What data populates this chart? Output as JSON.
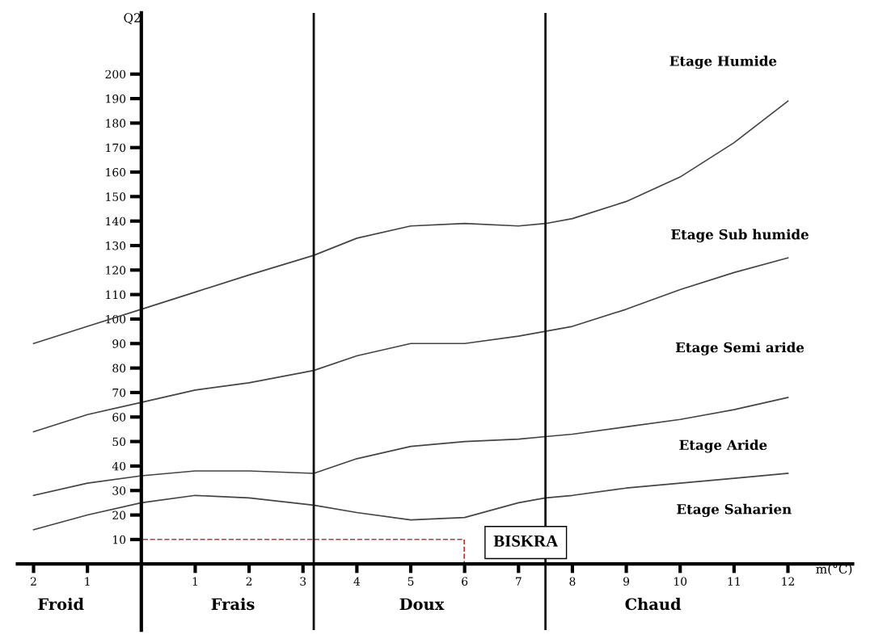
{
  "chart_data": {
    "type": "line",
    "xlabel": "m(°C)",
    "ylabel": "Q2",
    "xlim": [
      -2.3,
      13.2
    ],
    "ylim": [
      -27,
      225
    ],
    "xticks": [
      {
        "value": -2,
        "label": "2"
      },
      {
        "value": -1,
        "label": "1"
      },
      1,
      2,
      3,
      4,
      5,
      6,
      7,
      8,
      9,
      10,
      11,
      12
    ],
    "yticks": [
      10,
      20,
      30,
      40,
      50,
      60,
      70,
      80,
      90,
      100,
      110,
      120,
      130,
      140,
      150,
      160,
      170,
      180,
      190,
      200
    ],
    "grid": false,
    "legend": false,
    "marker": "none",
    "line_style": "solid",
    "series": [
      {
        "color": "#444444",
        "x": [
          -2,
          -1,
          0,
          1,
          2,
          3.2,
          4,
          5,
          6,
          7,
          7.5,
          8,
          9,
          10,
          11,
          12
        ],
        "values": [
          90,
          97,
          104,
          111,
          118,
          126,
          133,
          138,
          139,
          138,
          139,
          141,
          148,
          158,
          172,
          189
        ]
      },
      {
        "color": "#444444",
        "x": [
          -2,
          -1,
          0,
          1,
          2,
          3.2,
          4,
          5,
          6,
          7,
          7.5,
          8,
          9,
          10,
          11,
          12
        ],
        "values": [
          54,
          61,
          66,
          71,
          74,
          79,
          85,
          90,
          90,
          93,
          95,
          97,
          104,
          112,
          119,
          125
        ]
      },
      {
        "color": "#444444",
        "x": [
          -2,
          -1,
          0,
          1,
          2,
          3.2,
          4,
          5,
          6,
          7,
          7.5,
          8,
          9,
          10,
          11,
          12
        ],
        "values": [
          28,
          33,
          36,
          38,
          38,
          37,
          43,
          48,
          50,
          51,
          52,
          53,
          56,
          59,
          63,
          68
        ]
      },
      {
        "color": "#444444",
        "x": [
          -2,
          -1,
          0,
          1,
          2,
          3.2,
          4,
          5,
          6,
          7,
          7.5,
          8,
          9,
          10,
          11,
          12
        ],
        "values": [
          14,
          20,
          25,
          28,
          27,
          24,
          21,
          18,
          19,
          25,
          27,
          28,
          31,
          33,
          35,
          37
        ]
      }
    ],
    "ref_lines": [
      {
        "axis": "x",
        "value": 3.2,
        "color": "#111111"
      },
      {
        "axis": "x",
        "value": 7.5,
        "color": "#111111"
      }
    ],
    "annotations": [
      "Etage Humide",
      "Etage Sub humide",
      "Etage Semi aride",
      "Etage Aride",
      "Etage Saharien",
      "BISKRA",
      "Froid",
      "Frais",
      "Doux",
      "Chaud"
    ]
  }
}
